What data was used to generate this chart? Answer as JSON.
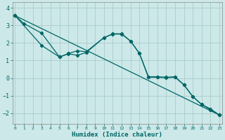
{
  "background_color": "#cce8e8",
  "grid_color": "#aacccc",
  "line_color": "#006666",
  "xlabel": "Humidex (Indice chaleur)",
  "ylim": [
    -2.6,
    4.3
  ],
  "xlim": [
    -0.3,
    23.3
  ],
  "yticks": [
    -2,
    -1,
    0,
    1,
    2,
    3,
    4
  ],
  "xtick_labels": [
    "0",
    "1",
    "2",
    "3",
    "4",
    "5",
    "6",
    "7",
    "8",
    "9",
    "10",
    "11",
    "12",
    "13",
    "14",
    "15",
    "16",
    "17",
    "18",
    "19",
    "20",
    "21",
    "22",
    "23"
  ],
  "line1_x": [
    0,
    1,
    3,
    5,
    6,
    7,
    8,
    10,
    11,
    12,
    13,
    14,
    15,
    16,
    17,
    18,
    19,
    20,
    21,
    22,
    23
  ],
  "line1_y": [
    3.55,
    3.1,
    2.55,
    1.2,
    1.4,
    1.55,
    1.5,
    2.3,
    2.5,
    2.5,
    2.1,
    1.4,
    0.08,
    0.08,
    0.05,
    0.08,
    -0.38,
    -1.05,
    -1.5,
    -1.8,
    -2.1
  ],
  "line2_x": [
    0,
    3,
    5,
    6,
    7,
    8,
    10,
    11,
    12,
    13,
    14,
    15,
    16,
    17,
    18,
    19,
    20,
    21,
    22,
    23
  ],
  "line2_y": [
    3.55,
    1.85,
    1.2,
    1.38,
    1.3,
    1.45,
    2.3,
    2.52,
    2.52,
    2.1,
    1.4,
    0.05,
    0.05,
    0.02,
    0.05,
    -0.38,
    -1.05,
    -1.5,
    -1.75,
    -2.1
  ],
  "line3_x": [
    0,
    23
  ],
  "line3_y": [
    3.55,
    -2.1
  ]
}
